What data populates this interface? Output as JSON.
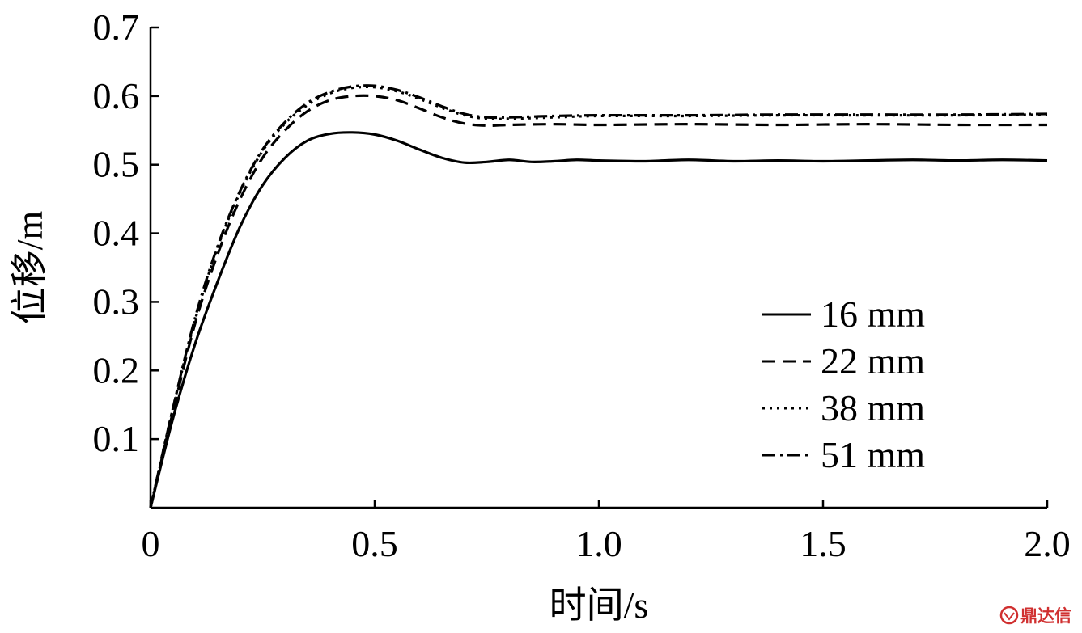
{
  "chart_data": {
    "type": "line",
    "xlabel": "时间/s",
    "ylabel": "位移/m",
    "xlim": [
      0,
      2.0
    ],
    "ylim": [
      0,
      0.7
    ],
    "x_ticks": [
      0,
      0.5,
      1.0,
      1.5,
      2.0
    ],
    "x_tick_labels": [
      "0",
      "0.5",
      "1.0",
      "1.5",
      "2.0"
    ],
    "y_ticks": [
      0.1,
      0.2,
      0.3,
      0.4,
      0.5,
      0.6,
      0.7
    ],
    "y_tick_labels": [
      "0.1",
      "0.2",
      "0.3",
      "0.4",
      "0.5",
      "0.6",
      "0.7"
    ],
    "grid": false,
    "legend_position": "bottom-right",
    "series": [
      {
        "name": "16 mm",
        "style": "solid",
        "x": [
          0,
          0.05,
          0.1,
          0.15,
          0.2,
          0.25,
          0.3,
          0.35,
          0.4,
          0.45,
          0.5,
          0.55,
          0.6,
          0.65,
          0.7,
          0.75,
          0.8,
          0.85,
          0.9,
          0.95,
          1.0,
          1.1,
          1.2,
          1.3,
          1.4,
          1.5,
          1.6,
          1.7,
          1.8,
          1.9,
          2.0
        ],
        "y": [
          0,
          0.13,
          0.24,
          0.33,
          0.41,
          0.47,
          0.51,
          0.535,
          0.545,
          0.547,
          0.544,
          0.535,
          0.522,
          0.51,
          0.503,
          0.504,
          0.507,
          0.504,
          0.505,
          0.507,
          0.506,
          0.505,
          0.507,
          0.505,
          0.506,
          0.505,
          0.506,
          0.507,
          0.506,
          0.507,
          0.506
        ]
      },
      {
        "name": "22 mm",
        "style": "dashed",
        "x": [
          0,
          0.05,
          0.1,
          0.15,
          0.2,
          0.25,
          0.3,
          0.35,
          0.4,
          0.45,
          0.5,
          0.55,
          0.6,
          0.65,
          0.7,
          0.75,
          0.8,
          0.9,
          1.0,
          1.2,
          1.4,
          1.6,
          1.8,
          2.0
        ],
        "y": [
          0,
          0.14,
          0.27,
          0.37,
          0.45,
          0.51,
          0.55,
          0.578,
          0.594,
          0.6,
          0.6,
          0.594,
          0.582,
          0.569,
          0.56,
          0.557,
          0.558,
          0.559,
          0.558,
          0.559,
          0.558,
          0.559,
          0.558,
          0.558
        ]
      },
      {
        "name": "38 mm",
        "style": "dotted",
        "x": [
          0,
          0.05,
          0.1,
          0.15,
          0.2,
          0.25,
          0.3,
          0.35,
          0.4,
          0.45,
          0.5,
          0.55,
          0.6,
          0.65,
          0.7,
          0.75,
          0.8,
          0.9,
          1.0,
          1.2,
          1.4,
          1.6,
          1.8,
          2.0
        ],
        "y": [
          0,
          0.145,
          0.275,
          0.38,
          0.46,
          0.52,
          0.56,
          0.587,
          0.604,
          0.612,
          0.613,
          0.607,
          0.596,
          0.583,
          0.572,
          0.567,
          0.567,
          0.569,
          0.571,
          0.571,
          0.572,
          0.572,
          0.572,
          0.573
        ]
      },
      {
        "name": "51 mm",
        "style": "dashdot",
        "x": [
          0,
          0.05,
          0.1,
          0.15,
          0.2,
          0.25,
          0.3,
          0.35,
          0.4,
          0.45,
          0.5,
          0.55,
          0.6,
          0.65,
          0.7,
          0.75,
          0.8,
          0.9,
          1.0,
          1.2,
          1.4,
          1.6,
          1.8,
          2.0
        ],
        "y": [
          0,
          0.145,
          0.278,
          0.382,
          0.462,
          0.522,
          0.562,
          0.59,
          0.606,
          0.614,
          0.615,
          0.609,
          0.598,
          0.585,
          0.574,
          0.569,
          0.569,
          0.571,
          0.572,
          0.572,
          0.573,
          0.573,
          0.573,
          0.574
        ]
      }
    ]
  },
  "watermark": {
    "text": "鼎达信",
    "color": "#d03030"
  }
}
